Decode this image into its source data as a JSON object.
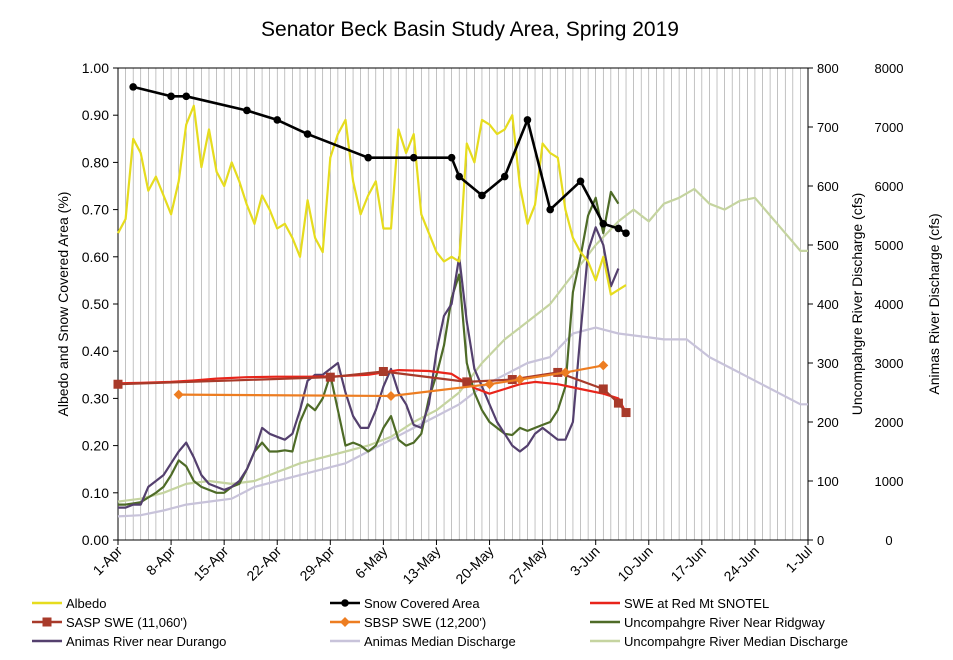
{
  "chart_data": {
    "type": "line",
    "title": "Senator Beck Basin Study Area, Spring 2019",
    "y_left_label": "Albedo and Snow Covered Area (%)",
    "y_right1_label": "Uncompahgre River Discharge (cfs)",
    "y_right2_label": "Animas River Discharge (cfs)",
    "x_range_days": [
      0,
      91
    ],
    "x_ticks": [
      {
        "day": 0,
        "label": "1-Apr"
      },
      {
        "day": 7,
        "label": "8-Apr"
      },
      {
        "day": 14,
        "label": "15-Apr"
      },
      {
        "day": 21,
        "label": "22-Apr"
      },
      {
        "day": 28,
        "label": "29-Apr"
      },
      {
        "day": 35,
        "label": "6-May"
      },
      {
        "day": 42,
        "label": "13-May"
      },
      {
        "day": 49,
        "label": "20-May"
      },
      {
        "day": 56,
        "label": "27-May"
      },
      {
        "day": 63,
        "label": "3-Jun"
      },
      {
        "day": 70,
        "label": "10-Jun"
      },
      {
        "day": 77,
        "label": "17-Jun"
      },
      {
        "day": 84,
        "label": "24-Jun"
      },
      {
        "day": 91,
        "label": "1-Jul"
      }
    ],
    "y_left_ticks": [
      "0.00",
      "0.10",
      "0.20",
      "0.30",
      "0.40",
      "0.50",
      "0.60",
      "0.70",
      "0.80",
      "0.90",
      "1.00"
    ],
    "y_left_range": [
      0,
      1
    ],
    "y_right1_ticks": [
      "0",
      "100",
      "200",
      "300",
      "400",
      "500",
      "600",
      "700",
      "800"
    ],
    "y_right1_range": [
      0,
      800
    ],
    "y_right2_ticks": [
      "0",
      "1000",
      "2000",
      "3000",
      "4000",
      "5000",
      "6000",
      "7000",
      "8000"
    ],
    "y_right2_range": [
      0,
      8000
    ],
    "grid": "vertical daily gridlines",
    "legend_position": "bottom",
    "series": [
      {
        "name": "Albedo",
        "axis": "left",
        "color": "#e6dc1e",
        "marker": "none",
        "x": [
          0,
          1,
          2,
          3,
          4,
          5,
          6,
          7,
          8,
          9,
          10,
          11,
          12,
          13,
          14,
          15,
          16,
          17,
          18,
          19,
          20,
          21,
          22,
          23,
          24,
          25,
          26,
          27,
          28,
          29,
          30,
          31,
          32,
          33,
          34,
          35,
          36,
          37,
          38,
          39,
          40,
          41,
          42,
          43,
          44,
          45,
          46,
          47,
          48,
          49,
          50,
          51,
          52,
          53,
          54,
          55,
          56,
          57,
          58,
          59,
          60,
          61,
          62,
          63,
          64,
          65,
          66,
          67
        ],
        "y": [
          0.65,
          0.68,
          0.85,
          0.82,
          0.74,
          0.77,
          0.73,
          0.69,
          0.76,
          0.88,
          0.92,
          0.79,
          0.87,
          0.78,
          0.75,
          0.8,
          0.76,
          0.71,
          0.67,
          0.73,
          0.7,
          0.66,
          0.67,
          0.64,
          0.6,
          0.72,
          0.64,
          0.61,
          0.81,
          0.86,
          0.89,
          0.76,
          0.69,
          0.73,
          0.76,
          0.66,
          0.66,
          0.87,
          0.82,
          0.86,
          0.69,
          0.65,
          0.61,
          0.59,
          0.6,
          0.59,
          0.84,
          0.8,
          0.89,
          0.88,
          0.86,
          0.87,
          0.9,
          0.75,
          0.67,
          0.71,
          0.84,
          0.82,
          0.81,
          0.7,
          0.64,
          0.61,
          0.59,
          0.55,
          0.6,
          0.52,
          0.53,
          0.54
        ]
      },
      {
        "name": "Snow Covered Area",
        "axis": "left",
        "color": "#000000",
        "marker": "circle",
        "x": [
          2,
          7,
          9,
          17,
          21,
          25,
          33,
          39,
          44,
          45,
          48,
          51,
          54,
          57,
          61,
          64,
          66,
          67
        ],
        "y": [
          0.96,
          0.94,
          0.94,
          0.91,
          0.89,
          0.86,
          0.81,
          0.81,
          0.81,
          0.77,
          0.73,
          0.77,
          0.89,
          0.7,
          0.76,
          0.67,
          0.66,
          0.65
        ]
      },
      {
        "name": "SWE at Red Mt SNOTEL",
        "axis": "left",
        "color": "#e8241a",
        "marker": "none",
        "x": [
          0,
          3,
          7,
          10,
          13,
          17,
          21,
          25,
          29,
          33,
          37,
          41,
          44,
          47,
          49,
          51,
          53,
          55,
          58,
          61,
          64,
          66,
          67
        ],
        "y": [
          0.332,
          0.333,
          0.335,
          0.338,
          0.342,
          0.345,
          0.346,
          0.346,
          0.347,
          0.35,
          0.36,
          0.358,
          0.352,
          0.322,
          0.31,
          0.32,
          0.33,
          0.335,
          0.33,
          0.32,
          0.31,
          0.3,
          0.27
        ]
      },
      {
        "name": "SASP SWE (11,060')",
        "axis": "left",
        "color": "#a83a2a",
        "marker": "square",
        "x": [
          0,
          28,
          35,
          46,
          52,
          58,
          64,
          66,
          67
        ],
        "y": [
          0.33,
          0.345,
          0.357,
          0.335,
          0.34,
          0.355,
          0.32,
          0.29,
          0.27
        ]
      },
      {
        "name": "SBSP SWE (12,200')",
        "axis": "left",
        "color": "#ed7d21",
        "marker": "diamond",
        "x": [
          8,
          36,
          49,
          53,
          59,
          64
        ],
        "y": [
          0.308,
          0.305,
          0.33,
          0.34,
          0.355,
          0.37
        ]
      },
      {
        "name": "Uncompahgre River Near Ridgway",
        "axis": "right1",
        "color": "#4e6b27",
        "marker": "none",
        "x": [
          0,
          1,
          2,
          3,
          4,
          5,
          6,
          7,
          8,
          9,
          10,
          11,
          12,
          13,
          14,
          15,
          16,
          17,
          18,
          19,
          20,
          21,
          22,
          23,
          24,
          25,
          26,
          27,
          28,
          29,
          30,
          31,
          32,
          33,
          34,
          35,
          36,
          37,
          38,
          39,
          40,
          41,
          42,
          43,
          44,
          45,
          46,
          47,
          48,
          49,
          50,
          51,
          52,
          53,
          54,
          55,
          56,
          57,
          58,
          59,
          60,
          61,
          62,
          63,
          64,
          65,
          66
        ],
        "y": [
          60,
          60,
          62,
          64,
          72,
          80,
          90,
          110,
          135,
          125,
          100,
          90,
          85,
          80,
          80,
          90,
          95,
          120,
          150,
          165,
          150,
          150,
          152,
          150,
          200,
          230,
          220,
          240,
          280,
          220,
          160,
          165,
          160,
          150,
          160,
          190,
          210,
          170,
          160,
          165,
          180,
          240,
          280,
          330,
          410,
          450,
          300,
          250,
          220,
          200,
          190,
          180,
          178,
          190,
          185,
          190,
          195,
          200,
          220,
          260,
          420,
          480,
          550,
          580,
          520,
          590,
          570
        ]
      },
      {
        "name": "Animas River near Durango",
        "axis": "right2",
        "color": "#54406e",
        "marker": "none",
        "x": [
          0,
          1,
          2,
          3,
          4,
          5,
          6,
          7,
          8,
          9,
          10,
          11,
          12,
          13,
          14,
          15,
          16,
          17,
          18,
          19,
          20,
          21,
          22,
          23,
          24,
          25,
          26,
          27,
          28,
          29,
          30,
          31,
          32,
          33,
          34,
          35,
          36,
          37,
          38,
          39,
          40,
          41,
          42,
          43,
          44,
          45,
          46,
          47,
          48,
          49,
          50,
          51,
          52,
          53,
          54,
          55,
          56,
          57,
          58,
          59,
          60,
          61,
          62,
          63,
          64,
          65,
          66
        ],
        "y": [
          550,
          550,
          600,
          600,
          900,
          1000,
          1100,
          1300,
          1500,
          1650,
          1400,
          1100,
          950,
          900,
          850,
          900,
          1000,
          1200,
          1500,
          1900,
          1800,
          1750,
          1700,
          1800,
          2200,
          2700,
          2800,
          2800,
          2900,
          3000,
          2500,
          2100,
          1900,
          1900,
          2200,
          2600,
          2900,
          2500,
          2300,
          1950,
          1900,
          2300,
          3200,
          3800,
          4000,
          4800,
          3700,
          2900,
          2600,
          2300,
          2000,
          1800,
          1600,
          1500,
          1600,
          1800,
          1900,
          1800,
          1700,
          1700,
          2000,
          3500,
          4900,
          5300,
          5000,
          4300,
          4600
        ]
      },
      {
        "name": "Animas Median Discharge",
        "axis": "right2",
        "color": "#c8c3da",
        "marker": "none",
        "x": [
          0,
          3,
          6,
          9,
          12,
          15,
          18,
          21,
          24,
          27,
          30,
          33,
          36,
          39,
          42,
          45,
          48,
          51,
          54,
          57,
          60,
          63,
          66,
          69,
          72,
          75,
          78,
          81,
          84,
          87,
          90,
          91
        ],
        "y": [
          400,
          420,
          500,
          600,
          650,
          700,
          900,
          1000,
          1100,
          1200,
          1300,
          1500,
          1700,
          1900,
          2100,
          2300,
          2600,
          2800,
          3000,
          3100,
          3500,
          3600,
          3500,
          3450,
          3400,
          3400,
          3100,
          2900,
          2700,
          2500,
          2300,
          2300
        ]
      },
      {
        "name": "Uncompahgre River Median Discharge",
        "axis": "right1",
        "color": "#c5d4a0",
        "marker": "none",
        "x": [
          0,
          3,
          6,
          9,
          12,
          15,
          18,
          21,
          24,
          27,
          30,
          33,
          36,
          39,
          42,
          45,
          48,
          51,
          54,
          57,
          60,
          63,
          66,
          68,
          70,
          72,
          74,
          76,
          78,
          80,
          82,
          84,
          86,
          88,
          90,
          91
        ],
        "y": [
          65,
          70,
          80,
          95,
          100,
          95,
          100,
          115,
          130,
          140,
          150,
          160,
          175,
          200,
          220,
          250,
          300,
          340,
          370,
          400,
          450,
          500,
          540,
          560,
          540,
          570,
          580,
          595,
          570,
          560,
          575,
          580,
          550,
          520,
          490,
          490
        ]
      }
    ]
  }
}
